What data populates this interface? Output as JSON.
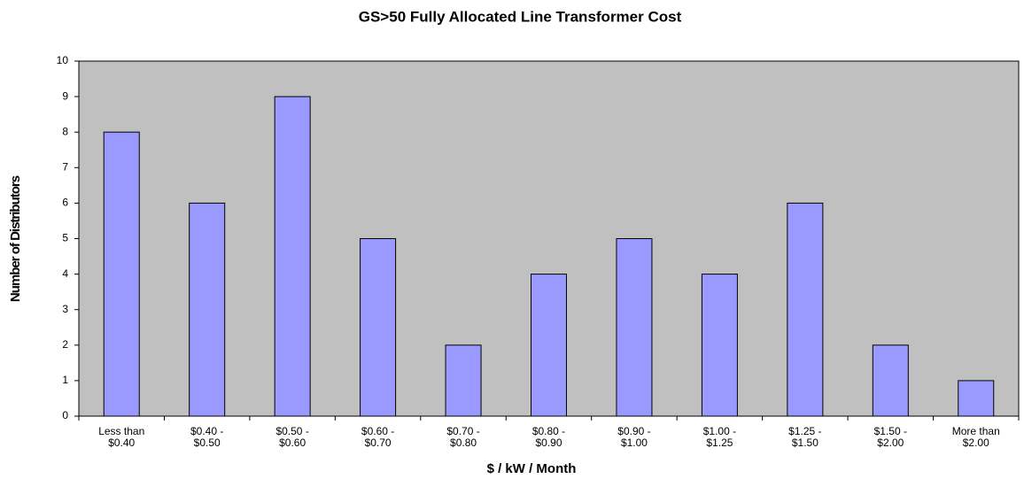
{
  "chart_data": {
    "type": "bar",
    "title": "GS>50 Fully Allocated Line Transformer Cost",
    "x_label": "$ / kW / Month",
    "y_label": "Number of Distributors",
    "categories": [
      [
        "Less than",
        "$0.40"
      ],
      [
        "$0.40 -",
        "$0.50"
      ],
      [
        "$0.50 -",
        "$0.60"
      ],
      [
        "$0.60 -",
        "$0.70"
      ],
      [
        "$0.70 -",
        "$0.80"
      ],
      [
        "$0.80 -",
        "$0.90"
      ],
      [
        "$0.90 -",
        "$1.00"
      ],
      [
        "$1.00 -",
        "$1.25"
      ],
      [
        "$1.25 -",
        "$1.50"
      ],
      [
        "$1.50 -",
        "$2.00"
      ],
      [
        "More than",
        "$2.00"
      ]
    ],
    "values": [
      8,
      6,
      9,
      5,
      2,
      4,
      5,
      4,
      6,
      2,
      1
    ],
    "color": "#9999ff",
    "background": "#c0c0c0",
    "ylim": [
      0,
      10
    ],
    "yticks": [
      0,
      1,
      2,
      3,
      4,
      5,
      6,
      7,
      8,
      9,
      10
    ],
    "grid": false
  }
}
